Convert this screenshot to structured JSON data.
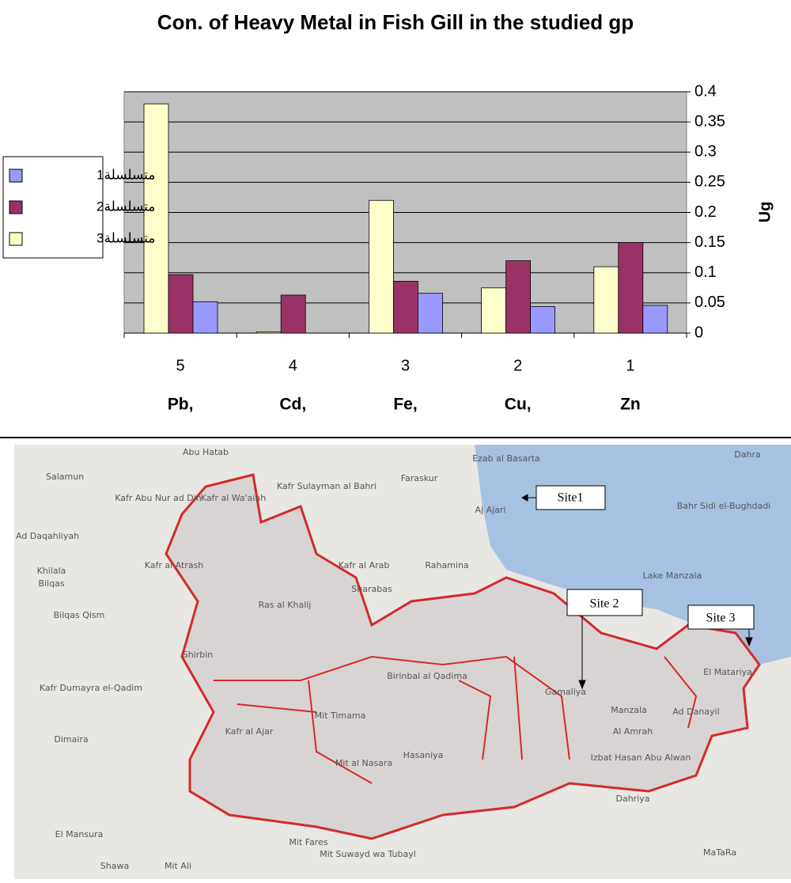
{
  "chart_data": {
    "type": "bar",
    "title": "Con. of Heavy Metal in Fish Gill in the studied gp",
    "y_label": "Ug",
    "categories": [
      "5",
      "4",
      "3",
      "2",
      "1"
    ],
    "category_sublabels": [
      "Pb,",
      "Cd,",
      "Fe,",
      "Cu,",
      "Zn"
    ],
    "series": [
      {
        "name": "متسلسلة1",
        "color": "#9999ff",
        "values": [
          0.052,
          0,
          0.066,
          0.044,
          0.046
        ]
      },
      {
        "name": "متسلسلة2",
        "color": "#993366",
        "values": [
          0.097,
          0.063,
          0.086,
          0.12,
          0.15
        ]
      },
      {
        "name": "متسلسلة3",
        "color": "#ffffcc",
        "values": [
          0.38,
          0.002,
          0.22,
          0.075,
          0.11
        ]
      }
    ],
    "ylim": [
      0,
      0.4
    ],
    "yticks": [
      0,
      0.05,
      0.1,
      0.15,
      0.2,
      0.25,
      0.3,
      0.35,
      0.4
    ],
    "grid": true,
    "legend": "left"
  },
  "map": {
    "sites": [
      "Site1",
      "Site 2",
      "Site 3"
    ],
    "places": [
      "Abu Hatab",
      "Salamun",
      "Kafr Abu Nur ad Din",
      "Kafr al Wa'aiah",
      "Kafr Sulayman al Bahri",
      "Faraskur",
      "Ezab al Basarta",
      "Aj Ajari",
      "Dahra",
      "Ad Daqahliyah",
      "Khilala",
      "Bilqas",
      "Kafr al Atrash",
      "Ras al Khalij",
      "Kafr al Arab",
      "Sharabas",
      "Rahamina",
      "Lake Manzala",
      "Bahr Sidi el-Bughdadi",
      "Bilqas Qism",
      "Shirbin",
      "Kafr Dumayra el-Qadim",
      "Dimaira",
      "Kafr al Ajar",
      "Mit Timama",
      "Birinbal al Qadima",
      "Gamaliya",
      "Al Amrah",
      "Manzala",
      "Ad Danayil",
      "El Matariya",
      "Izbat Hasan Abu Alwan",
      "Mit al Nasara",
      "Hasaniya",
      "El Mansura",
      "Mit Fares",
      "Mit Suwayd wa Tubayl",
      "Mit Ali",
      "Shawa",
      "MaTaRa",
      "Dahriya"
    ]
  }
}
